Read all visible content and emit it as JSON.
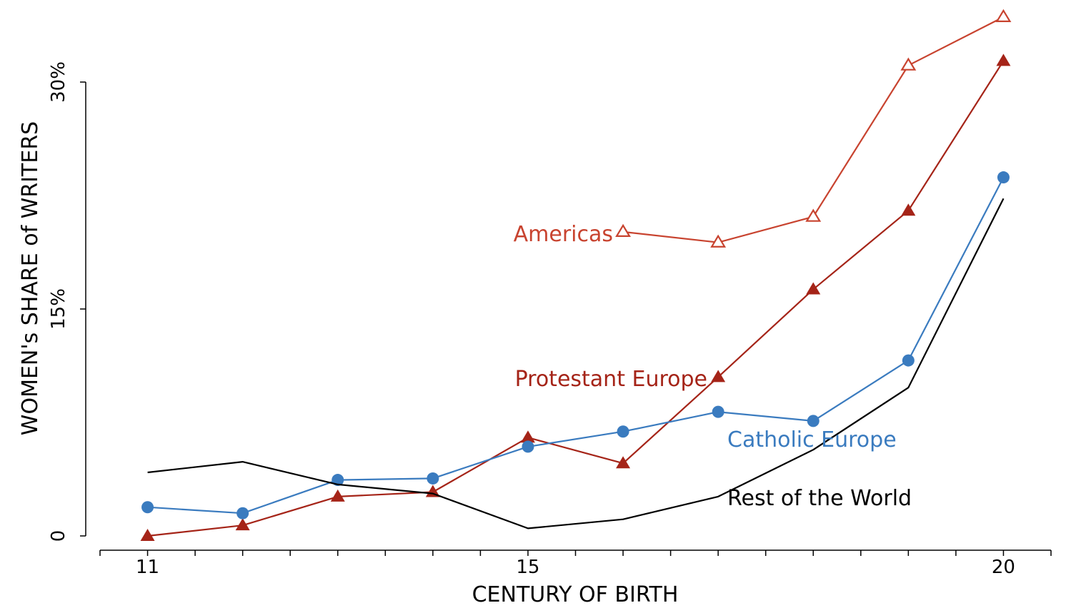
{
  "chart_data": {
    "type": "line",
    "xlabel": "CENTURY OF BIRTH",
    "ylabel": "WOMEN's SHARE of WRITERS",
    "x": [
      11,
      12,
      13,
      14,
      15,
      16,
      17,
      18,
      19,
      20
    ],
    "x_tick_labels": [
      "11",
      "15",
      "20"
    ],
    "y_tick_labels": [
      "0",
      "15%",
      "30%"
    ],
    "xlim": [
      10.5,
      20.5
    ],
    "ylim": [
      0,
      30
    ],
    "x_minor_ticks": [
      10.5,
      11,
      11.5,
      12,
      12.5,
      13,
      13.5,
      14,
      14.5,
      15,
      15.5,
      16,
      16.5,
      17,
      17.5,
      18,
      18.5,
      19,
      19.5,
      20,
      20.5
    ],
    "series": [
      {
        "name": "Americas",
        "color": "#c8432f",
        "marker": "triangle-open",
        "x": [
          16,
          17,
          18,
          19,
          20
        ],
        "values": [
          20.1,
          19.4,
          21.1,
          31.1,
          34.3
        ]
      },
      {
        "name": "Protestant Europe",
        "color": "#a52418",
        "marker": "triangle-filled",
        "x": [
          11,
          12,
          13,
          14,
          15,
          16,
          17,
          18,
          19,
          20
        ],
        "values": [
          0.0,
          0.7,
          2.6,
          2.9,
          6.5,
          4.8,
          10.5,
          16.3,
          21.5,
          31.4
        ]
      },
      {
        "name": "Catholic Europe",
        "color": "#3a7bbf",
        "marker": "circle-filled",
        "x": [
          11,
          12,
          13,
          14,
          15,
          16,
          17,
          18,
          19,
          20
        ],
        "values": [
          1.9,
          1.5,
          3.7,
          3.8,
          5.9,
          6.9,
          8.2,
          7.6,
          11.6,
          23.7
        ]
      },
      {
        "name": "Rest of the World",
        "color": "#000000",
        "marker": "none",
        "x": [
          11,
          12,
          13,
          14,
          15,
          16,
          17,
          18,
          19,
          20
        ],
        "values": [
          4.2,
          4.9,
          3.4,
          2.8,
          0.5,
          1.1,
          2.6,
          5.7,
          9.8,
          22.3
        ]
      }
    ]
  }
}
